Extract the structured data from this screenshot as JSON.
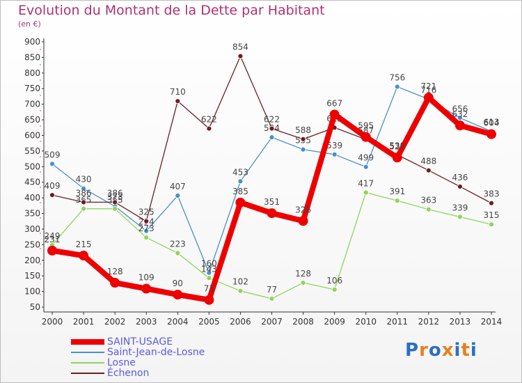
{
  "chart_data": {
    "type": "line",
    "title": "Evolution du Montant de la Dette par Habitant",
    "unit_label": "(en €)",
    "xlabel": "",
    "ylabel": "",
    "x": [
      "2000",
      "2001",
      "2002",
      "2003",
      "2004",
      "2005",
      "2006",
      "2007",
      "2008",
      "2009",
      "2010",
      "2011",
      "2012",
      "2013",
      "2014"
    ],
    "ylim": [
      50,
      900
    ],
    "yticks": [
      50,
      100,
      150,
      200,
      250,
      300,
      350,
      400,
      450,
      500,
      550,
      600,
      650,
      700,
      750,
      800,
      850,
      900
    ],
    "grid": false,
    "legend_position": "bottom-left",
    "series": [
      {
        "name": "Saint-Jean-de-Losne",
        "color": "#4a90c8",
        "values": [
          509,
          430,
          373,
          294,
          407,
          160,
          453,
          594,
          555,
          539,
          499,
          756,
          716,
          656,
          613
        ]
      },
      {
        "name": "Losne",
        "color": "#8ed45a",
        "values": [
          249,
          365,
          365,
          273,
          223,
          143,
          102,
          77,
          128,
          106,
          417,
          391,
          363,
          339,
          315
        ]
      },
      {
        "name": "Échenon",
        "color": "#6b1e24",
        "values": [
          409,
          386,
          386,
          325,
          710,
          622,
          854,
          622,
          588,
          625,
          587,
          538,
          488,
          436,
          383
        ]
      },
      {
        "name": "SAINT-USAGE",
        "color": "#ee0000",
        "values": [
          231,
          215,
          128,
          109,
          90,
          73,
          385,
          351,
          326,
          667,
          595,
          529,
          721,
          632,
          604
        ]
      }
    ]
  },
  "legend": [
    "SAINT-USAGE",
    "Saint-Jean-de-Losne",
    "Losne",
    "Échenon"
  ],
  "logo": {
    "text": "Proxiti"
  }
}
